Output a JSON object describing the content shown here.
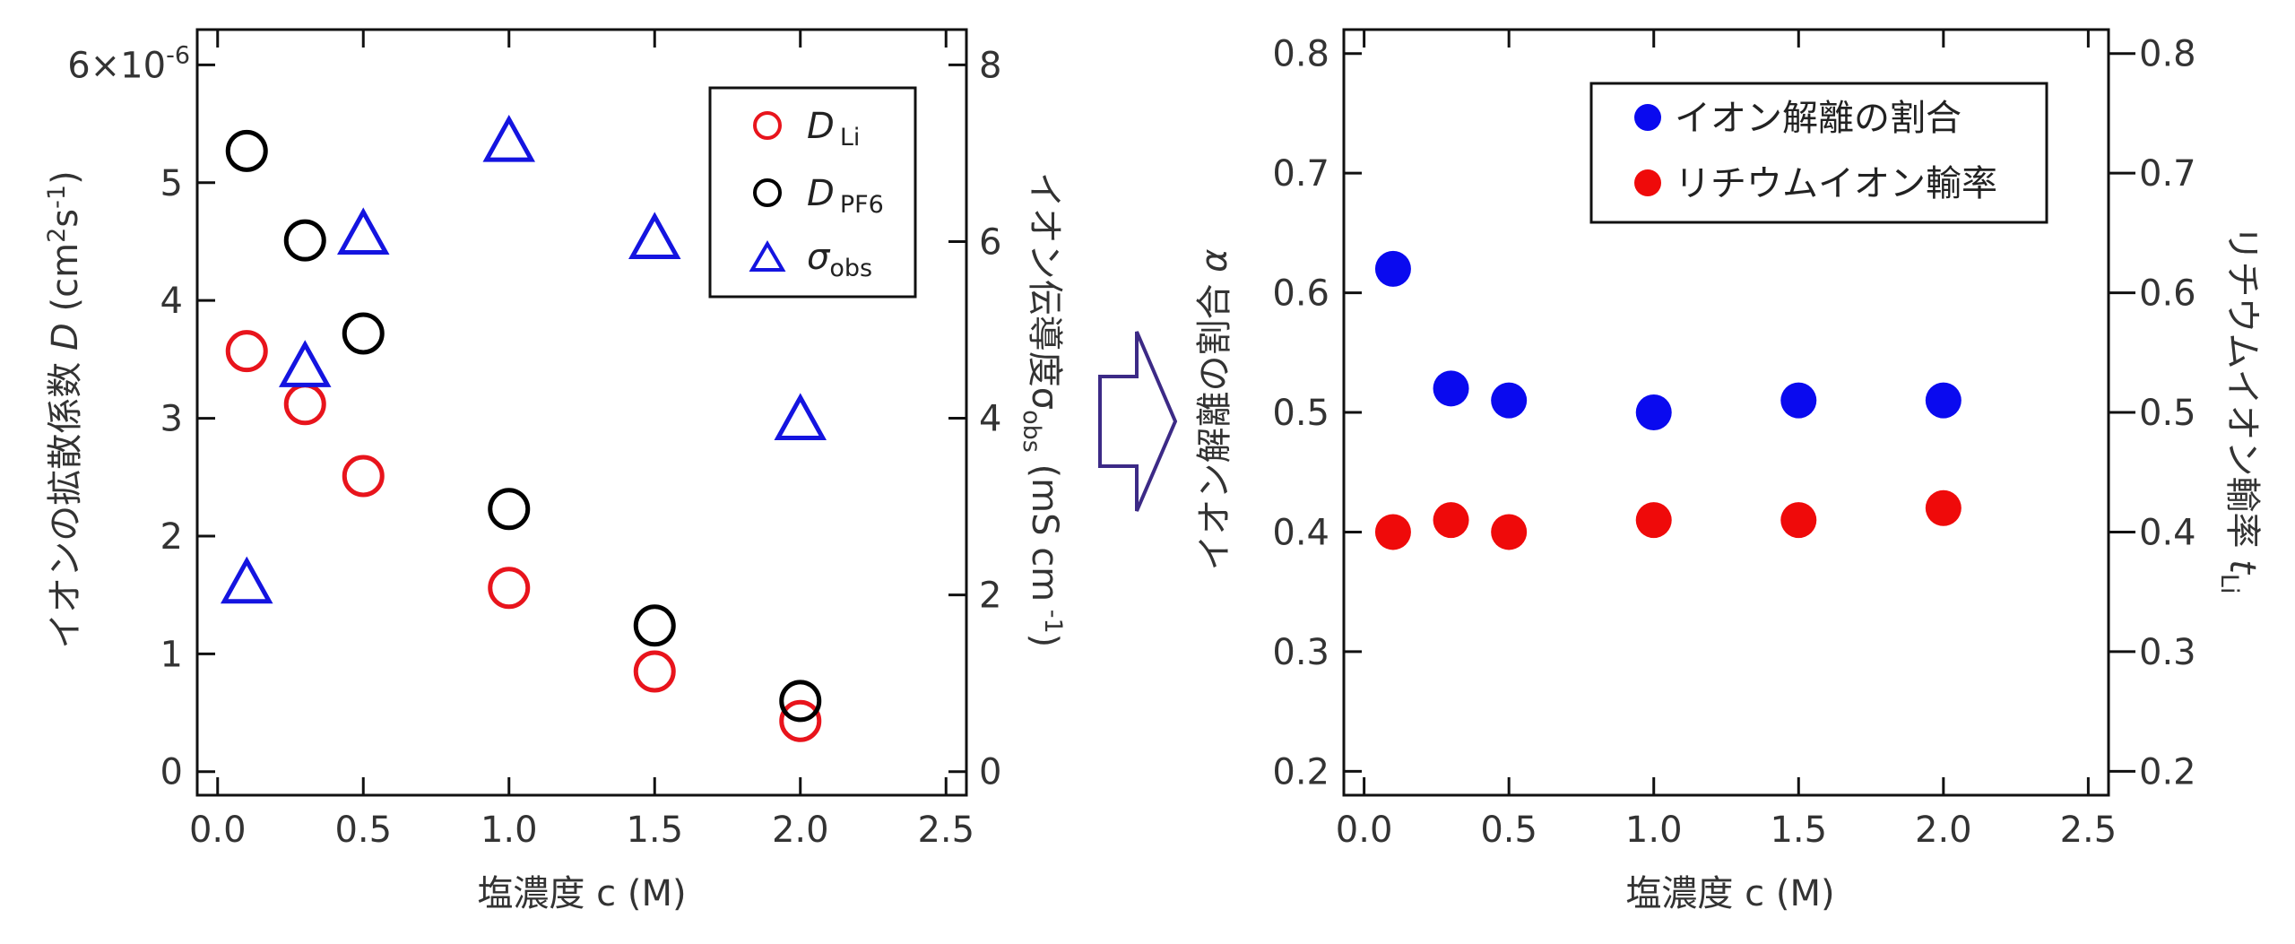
{
  "chart_data": [
    {
      "type": "scatter",
      "xlabel": "塩濃度 c (M)",
      "x_ticks": [
        "0.0",
        "0.5",
        "1.0",
        "1.5",
        "2.0",
        "2.5"
      ],
      "xlim": [
        -0.07,
        2.57
      ],
      "ylabel_left": {
        "prefix": "イオンの拡散係数 ",
        "var": "D",
        "unit_a": " (cm",
        "sup_a": "2",
        "unit_b": "s",
        "sup_b": "-1",
        "unit_c": ")"
      },
      "ylim_left": [
        -0.2,
        6.3
      ],
      "y_ticks_left": [
        "0",
        "1",
        "2",
        "3",
        "4",
        "5",
        "6×10"
      ],
      "y_top_exponent": "-6",
      "ylabel_right": {
        "prefix": "イオン伝導度σ",
        "sub": "obs",
        "unit_a": " (mS cm",
        "sup": " -1",
        "unit_b": ")"
      },
      "ylim_right": [
        -0.267,
        8.4
      ],
      "y_ticks_right": [
        "0",
        "2",
        "4",
        "6",
        "8"
      ],
      "legend_position": "top-right",
      "series": [
        {
          "name": "D",
          "name_sub": "Li",
          "axis": "left",
          "marker": "open-circle",
          "color": "#e8141c",
          "x": [
            0.1,
            0.3,
            0.5,
            1.0,
            1.5,
            2.0
          ],
          "y": [
            3.57,
            3.12,
            2.51,
            1.56,
            0.85,
            0.43
          ]
        },
        {
          "name": "D",
          "name_sub": "PF6",
          "axis": "left",
          "marker": "open-circle",
          "color": "#000000",
          "x": [
            0.1,
            0.3,
            0.5,
            1.0,
            1.5,
            2.0
          ],
          "y": [
            5.27,
            4.51,
            3.72,
            2.23,
            1.24,
            0.6
          ]
        },
        {
          "name": "σ",
          "name_sub": "obs",
          "axis": "right",
          "marker": "open-triangle",
          "color": "#1414e0",
          "x": [
            0.1,
            0.3,
            0.5,
            1.0,
            1.5,
            2.0
          ],
          "y": [
            2.1,
            4.55,
            6.05,
            7.1,
            6.0,
            3.95
          ]
        }
      ]
    },
    {
      "type": "scatter",
      "xlabel": "塩濃度 c (M)",
      "x_ticks": [
        "0.0",
        "0.5",
        "1.0",
        "1.5",
        "2.0",
        "2.5"
      ],
      "xlim": [
        -0.07,
        2.57
      ],
      "ylabel_left": {
        "prefix": "イオン解離の割合 ",
        "var": "α"
      },
      "ylim_left": [
        0.18,
        0.82
      ],
      "y_ticks_left": [
        "0.2",
        "0.3",
        "0.4",
        "0.5",
        "0.6",
        "0.7",
        "0.8"
      ],
      "ylabel_right": {
        "prefix": "リチウムイオン輸率 ",
        "var": "t",
        "sub": "Li"
      },
      "ylim_right": [
        0.18,
        0.82
      ],
      "y_ticks_right": [
        "0.2",
        "0.3",
        "0.4",
        "0.5",
        "0.6",
        "0.7",
        "0.8"
      ],
      "legend_position": "top-right",
      "series": [
        {
          "name": "イオン解離の割合",
          "axis": "left",
          "marker": "filled-circle",
          "color": "#0a0aef",
          "x": [
            0.1,
            0.3,
            0.5,
            1.0,
            1.5,
            2.0
          ],
          "y": [
            0.62,
            0.52,
            0.51,
            0.5,
            0.51,
            0.51
          ]
        },
        {
          "name": "リチウムイオン輸率",
          "axis": "right",
          "marker": "filled-circle",
          "color": "#ef0a0a",
          "x": [
            0.1,
            0.3,
            0.5,
            1.0,
            1.5,
            2.0
          ],
          "y": [
            0.4,
            0.41,
            0.4,
            0.41,
            0.41,
            0.42
          ]
        }
      ]
    }
  ],
  "arrow_color": "#3c2a86"
}
